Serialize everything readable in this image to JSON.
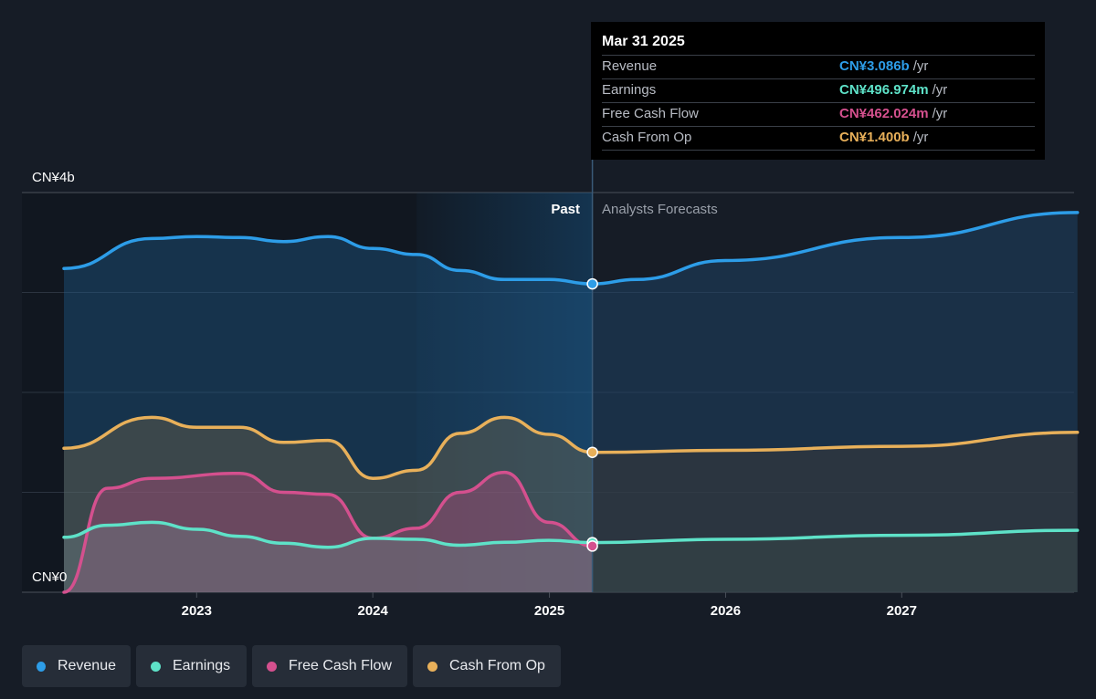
{
  "tooltip": {
    "date": "Mar 31 2025",
    "rows": [
      {
        "label": "Revenue",
        "value": "CN¥3.086b",
        "unit": "/yr",
        "color": "#2d9de8"
      },
      {
        "label": "Earnings",
        "value": "CN¥496.974m",
        "unit": "/yr",
        "color": "#5ee2c8"
      },
      {
        "label": "Free Cash Flow",
        "value": "CN¥462.024m",
        "unit": "/yr",
        "color": "#d4508e"
      },
      {
        "label": "Cash From Op",
        "value": "CN¥1.400b",
        "unit": "/yr",
        "color": "#e8b05a"
      }
    ]
  },
  "chart_data": {
    "type": "area",
    "y_unit": "CN¥ billions",
    "ylim": [
      0,
      4
    ],
    "y_tick_labels": [
      "CN¥4b",
      "CN¥0"
    ],
    "x_tick_labels": [
      "2023",
      "2024",
      "2025",
      "2026",
      "2027"
    ],
    "past_label": "Past",
    "forecast_label": "Analysts Forecasts",
    "divider_date": "2025-03-31",
    "x_range": [
      "2022-04-01",
      "2027-12-31"
    ],
    "grid": true,
    "series": [
      {
        "name": "Revenue",
        "color": "#2d9de8",
        "past": [
          [
            "2022-04-01",
            3.24
          ],
          [
            "2022-09-30",
            3.54
          ],
          [
            "2023-01-01",
            3.56
          ],
          [
            "2023-03-31",
            3.55
          ],
          [
            "2023-06-30",
            3.51
          ],
          [
            "2023-09-30",
            3.56
          ],
          [
            "2024-01-01",
            3.44
          ],
          [
            "2024-03-31",
            3.38
          ],
          [
            "2024-06-30",
            3.22
          ],
          [
            "2024-09-30",
            3.13
          ],
          [
            "2024-12-31",
            3.13
          ],
          [
            "2025-03-31",
            3.086
          ]
        ],
        "forecast": [
          [
            "2025-03-31",
            3.086
          ],
          [
            "2025-06-30",
            3.13
          ],
          [
            "2025-12-31",
            3.32
          ],
          [
            "2026-12-31",
            3.55
          ],
          [
            "2027-12-31",
            3.8
          ]
        ]
      },
      {
        "name": "Earnings",
        "color": "#5ee2c8",
        "past": [
          [
            "2022-04-01",
            0.55
          ],
          [
            "2022-06-30",
            0.67
          ],
          [
            "2022-09-30",
            0.7
          ],
          [
            "2023-01-01",
            0.63
          ],
          [
            "2023-03-31",
            0.56
          ],
          [
            "2023-06-30",
            0.49
          ],
          [
            "2023-09-30",
            0.45
          ],
          [
            "2024-01-01",
            0.54
          ],
          [
            "2024-03-31",
            0.53
          ],
          [
            "2024-06-30",
            0.47
          ],
          [
            "2024-09-30",
            0.5
          ],
          [
            "2024-12-31",
            0.52
          ],
          [
            "2025-03-31",
            0.497
          ]
        ],
        "forecast": [
          [
            "2025-03-31",
            0.497
          ],
          [
            "2026-01-01",
            0.53
          ],
          [
            "2027-01-01",
            0.57
          ],
          [
            "2027-12-31",
            0.62
          ]
        ]
      },
      {
        "name": "Free Cash Flow",
        "color": "#d4508e",
        "past": [
          [
            "2022-04-01",
            0.0
          ],
          [
            "2022-06-30",
            1.04
          ],
          [
            "2022-09-30",
            1.14
          ],
          [
            "2023-03-31",
            1.19
          ],
          [
            "2023-06-30",
            1.0
          ],
          [
            "2023-09-30",
            0.98
          ],
          [
            "2024-01-01",
            0.54
          ],
          [
            "2024-03-31",
            0.64
          ],
          [
            "2024-06-30",
            1.0
          ],
          [
            "2024-09-30",
            1.2
          ],
          [
            "2024-12-31",
            0.7
          ],
          [
            "2025-03-31",
            0.462
          ]
        ]
      },
      {
        "name": "Cash From Op",
        "color": "#e8b05a",
        "past": [
          [
            "2022-04-01",
            1.44
          ],
          [
            "2022-09-30",
            1.75
          ],
          [
            "2023-01-01",
            1.65
          ],
          [
            "2023-03-31",
            1.65
          ],
          [
            "2023-06-30",
            1.5
          ],
          [
            "2023-09-30",
            1.52
          ],
          [
            "2024-01-01",
            1.14
          ],
          [
            "2024-03-31",
            1.22
          ],
          [
            "2024-06-30",
            1.59
          ],
          [
            "2024-09-30",
            1.75
          ],
          [
            "2024-12-31",
            1.58
          ],
          [
            "2025-03-31",
            1.4
          ]
        ],
        "forecast": [
          [
            "2025-03-31",
            1.4
          ],
          [
            "2026-01-01",
            1.42
          ],
          [
            "2027-01-01",
            1.46
          ],
          [
            "2027-12-31",
            1.6
          ]
        ]
      }
    ]
  }
}
